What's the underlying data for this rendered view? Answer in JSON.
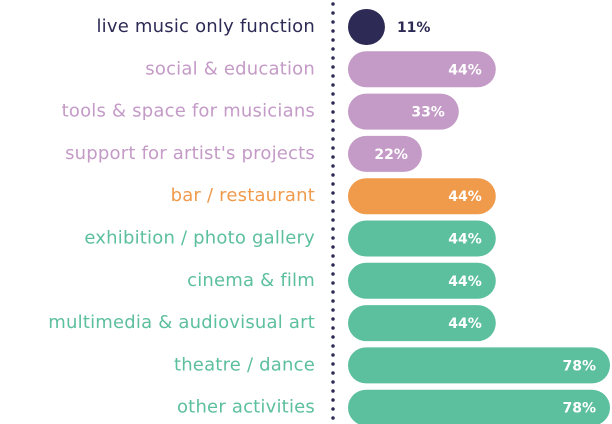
{
  "chart_data": {
    "type": "bar",
    "orientation": "horizontal",
    "categories": [
      "live music only function",
      "social & education",
      "tools & space for musicians",
      "support for artist's projects",
      "bar / restaurant",
      "exhibition / photo gallery",
      "cinema & film",
      "multimedia & audiovisual art",
      "theatre / dance",
      "other activities"
    ],
    "values": [
      11,
      44,
      33,
      22,
      44,
      44,
      44,
      44,
      78,
      78
    ],
    "value_labels": [
      "11%",
      "44%",
      "33%",
      "22%",
      "44%",
      "44%",
      "44%",
      "44%",
      "78%",
      "78%"
    ],
    "colors": [
      "#2d2b55",
      "#c49ac7",
      "#c49ac7",
      "#c49ac7",
      "#f09a4c",
      "#5cbf9d",
      "#5cbf9d",
      "#5cbf9d",
      "#5cbf9d",
      "#5cbf9d"
    ]
  }
}
